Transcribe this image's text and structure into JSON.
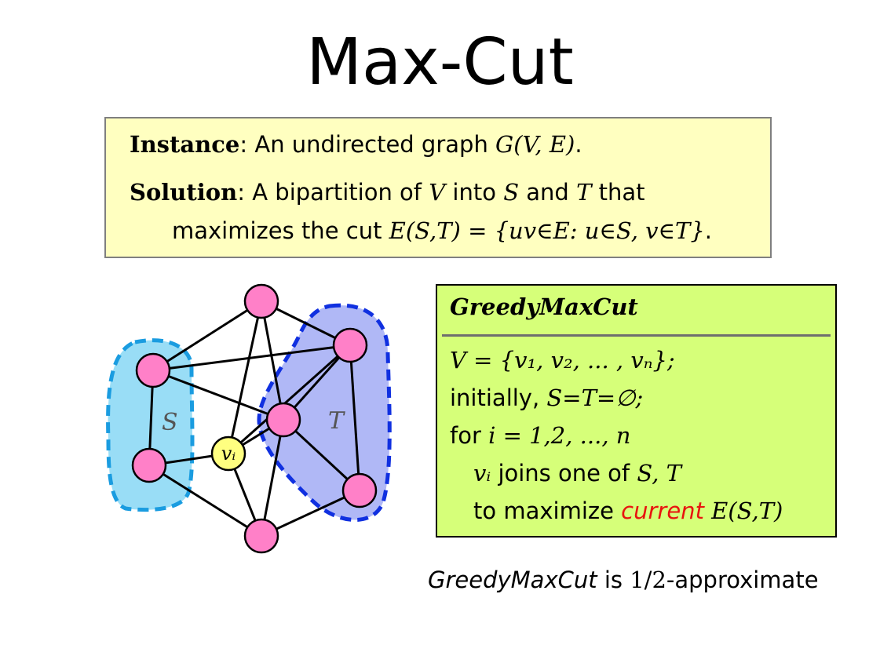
{
  "title": "Max-Cut",
  "problem": {
    "instance_label": "Instance",
    "instance_sep": ":",
    "instance_text": "An undirected graph",
    "instance_math": "G(V, E)",
    "instance_end": ".",
    "solution_label": "Solution",
    "solution_sep": ":",
    "solution_text_a": "A bipartition of",
    "solution_math_v": "V",
    "solution_text_b": "into",
    "solution_math_s": "S",
    "solution_text_c": "and",
    "solution_math_t": "T",
    "solution_text_d": "that",
    "solution_text_e": "maximizes the cut",
    "solution_math_cut": "E(S,T) = {uv∈E: u∈S, v∈T}",
    "solution_end": "."
  },
  "algorithm": {
    "name": "GreedyMaxCut",
    "line1": "V = {v₁, v₂, ... , vₙ};",
    "line2_text": "initially,",
    "line2_math": "S=T=∅;",
    "line3_text": "for",
    "line3_math": "i = 1,2, ..., n",
    "line4_math_vi": "vᵢ",
    "line4_text": "joins one of",
    "line4_math_st": "S, T",
    "line5_text": "to maximize",
    "line5_highlight": "current",
    "line5_math": "E(S,T)"
  },
  "caption": {
    "name": "GreedyMaxCut",
    "text": "is",
    "math": "1/2",
    "tail": "-approximate"
  },
  "graph": {
    "label_s": "S",
    "label_t": "T",
    "label_vi": "vᵢ",
    "colors": {
      "node": "#ff80c8",
      "vi_node": "#ffff80",
      "s_region": "#99ddf6",
      "s_border": "#1a9ce0",
      "t_region": "#b0b8f6",
      "t_border": "#1030e0"
    }
  }
}
